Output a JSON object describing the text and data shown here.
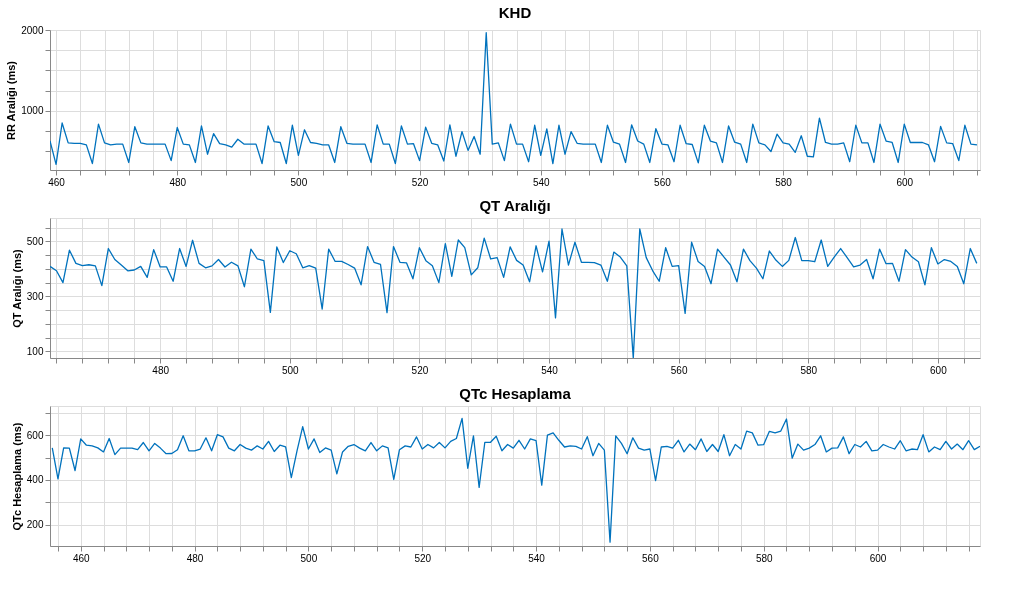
{
  "chart_data": [
    {
      "type": "line",
      "title": "KHD",
      "ylabel": "RR Aralığı (ms)",
      "grid": true,
      "marker": "none",
      "line_style": "solid",
      "xlim": [
        459,
        612.5
      ],
      "ylim": [
        270,
        2000
      ],
      "xticks": [
        {
          "value": 464,
          "label": null
        },
        {
          "value": 468,
          "label": null
        },
        {
          "value": 472,
          "label": null
        },
        {
          "value": 476,
          "label": null
        },
        460,
        480,
        500,
        520,
        540,
        560,
        580,
        600,
        {
          "value": 484,
          "label": null
        },
        {
          "value": 488,
          "label": null
        },
        {
          "value": 492,
          "label": null
        },
        {
          "value": 496,
          "label": null
        },
        {
          "value": 504,
          "label": null
        },
        {
          "value": 508,
          "label": null
        },
        {
          "value": 512,
          "label": null
        },
        {
          "value": 516,
          "label": null
        },
        {
          "value": 524,
          "label": null
        },
        {
          "value": 528,
          "label": null
        },
        {
          "value": 532,
          "label": null
        },
        {
          "value": 536,
          "label": null
        },
        {
          "value": 544,
          "label": null
        },
        {
          "value": 548,
          "label": null
        },
        {
          "value": 552,
          "label": null
        },
        {
          "value": 556,
          "label": null
        },
        {
          "value": 564,
          "label": null
        },
        {
          "value": 568,
          "label": null
        },
        {
          "value": 572,
          "label": null
        },
        {
          "value": 576,
          "label": null
        },
        {
          "value": 584,
          "label": null
        },
        {
          "value": 588,
          "label": null
        },
        {
          "value": 592,
          "label": null
        },
        {
          "value": 596,
          "label": null
        },
        {
          "value": 604,
          "label": null
        },
        {
          "value": 608,
          "label": null
        },
        {
          "value": 612,
          "label": null
        }
      ],
      "yticks": [
        {
          "value": 500,
          "label": null
        },
        {
          "value": 750,
          "label": null
        },
        1000,
        {
          "value": 1250,
          "label": null
        },
        {
          "value": 1500,
          "label": null
        },
        {
          "value": 1750,
          "label": null
        },
        2000
      ],
      "x": [
        459,
        460,
        461,
        462,
        463,
        464,
        465,
        466,
        467,
        468,
        469,
        470,
        471,
        472,
        473,
        474,
        475,
        476,
        477,
        478,
        479,
        480,
        481,
        482,
        483,
        484,
        485,
        486,
        487,
        488,
        489,
        490,
        491,
        492,
        493,
        494,
        495,
        496,
        497,
        498,
        499,
        500,
        501,
        502,
        503,
        504,
        505,
        506,
        507,
        508,
        509,
        510,
        511,
        512,
        513,
        514,
        515,
        516,
        517,
        518,
        519,
        520,
        521,
        522,
        523,
        524,
        525,
        526,
        527,
        528,
        529,
        530,
        531,
        532,
        533,
        534,
        535,
        536,
        537,
        538,
        539,
        540,
        541,
        542,
        543,
        544,
        545,
        546,
        547,
        548,
        549,
        550,
        551,
        552,
        553,
        554,
        555,
        556,
        557,
        558,
        559,
        560,
        561,
        562,
        563,
        564,
        565,
        566,
        567,
        568,
        569,
        570,
        571,
        572,
        573,
        574,
        575,
        576,
        577,
        578,
        579,
        580,
        581,
        582,
        583,
        584,
        585,
        586,
        587,
        588,
        589,
        590,
        591,
        592,
        593,
        594,
        595,
        596,
        597,
        598,
        599,
        600,
        601,
        602,
        603,
        604,
        605,
        606,
        607,
        608,
        609,
        610,
        611,
        612
      ],
      "series": [
        {
          "color": "#0072bd",
          "values": [
            628,
            340,
            851,
            605,
            600,
            600,
            580,
            350,
            837,
            605,
            580,
            590,
            590,
            363,
            805,
            605,
            590,
            590,
            590,
            590,
            386,
            795,
            590,
            580,
            363,
            814,
            465,
            720,
            595,
            580,
            553,
            650,
            590,
            590,
            590,
            350,
            814,
            620,
            610,
            350,
            823,
            450,
            767,
            610,
            600,
            580,
            580,
            363,
            805,
            600,
            590,
            590,
            590,
            363,
            828,
            590,
            590,
            350,
            814,
            590,
            595,
            386,
            800,
            600,
            580,
            381,
            828,
            440,
            744,
            512,
            684,
            465,
            1967,
            590,
            605,
            386,
            837,
            590,
            590,
            372,
            823,
            450,
            777,
            350,
            823,
            465,
            744,
            600,
            590,
            590,
            590,
            363,
            823,
            614,
            590,
            363,
            828,
            628,
            590,
            363,
            781,
            590,
            580,
            372,
            823,
            595,
            585,
            358,
            823,
            628,
            605,
            363,
            814,
            614,
            590,
            363,
            837,
            605,
            580,
            498,
            712,
            605,
            590,
            488,
            693,
            440,
            433,
            912,
            610,
            590,
            590,
            605,
            372,
            823,
            605,
            605,
            363,
            837,
            628,
            610,
            363,
            837,
            610,
            610,
            610,
            580,
            372,
            809,
            605,
            595,
            386,
            823,
            590,
            580
          ]
        }
      ]
    },
    {
      "type": "line",
      "title": "QT Aralığı",
      "ylabel": "QT Aralığı (ms)",
      "grid": true,
      "marker": "none",
      "line_style": "solid",
      "xlim": [
        463,
        606.5
      ],
      "ylim": [
        76,
        585
      ],
      "xticks": [
        {
          "value": 464,
          "label": null
        },
        {
          "value": 468,
          "label": null
        },
        {
          "value": 472,
          "label": null
        },
        {
          "value": 476,
          "label": null
        },
        480,
        500,
        520,
        540,
        560,
        580,
        600,
        {
          "value": 484,
          "label": null
        },
        {
          "value": 488,
          "label": null
        },
        {
          "value": 492,
          "label": null
        },
        {
          "value": 496,
          "label": null
        },
        {
          "value": 504,
          "label": null
        },
        {
          "value": 508,
          "label": null
        },
        {
          "value": 512,
          "label": null
        },
        {
          "value": 516,
          "label": null
        },
        {
          "value": 524,
          "label": null
        },
        {
          "value": 528,
          "label": null
        },
        {
          "value": 532,
          "label": null
        },
        {
          "value": 536,
          "label": null
        },
        {
          "value": 544,
          "label": null
        },
        {
          "value": 548,
          "label": null
        },
        {
          "value": 552,
          "label": null
        },
        {
          "value": 556,
          "label": null
        },
        {
          "value": 564,
          "label": null
        },
        {
          "value": 568,
          "label": null
        },
        {
          "value": 572,
          "label": null
        },
        {
          "value": 576,
          "label": null
        },
        {
          "value": 584,
          "label": null
        },
        {
          "value": 588,
          "label": null
        },
        {
          "value": 592,
          "label": null
        },
        {
          "value": 596,
          "label": null
        },
        {
          "value": 604,
          "label": null
        }
      ],
      "yticks": [
        100,
        {
          "value": 150,
          "label": null
        },
        {
          "value": 200,
          "label": null
        },
        {
          "value": 250,
          "label": null
        },
        300,
        {
          "value": 350,
          "label": null
        },
        {
          "value": 400,
          "label": null
        },
        {
          "value": 450,
          "label": null
        },
        500,
        {
          "value": 550,
          "label": null
        }
      ],
      "x": [
        463,
        464,
        465,
        466,
        467,
        468,
        469,
        470,
        471,
        472,
        473,
        474,
        475,
        476,
        477,
        478,
        479,
        480,
        481,
        482,
        483,
        484,
        485,
        486,
        487,
        488,
        489,
        490,
        491,
        492,
        493,
        494,
        495,
        496,
        497,
        498,
        499,
        500,
        501,
        502,
        503,
        504,
        505,
        506,
        507,
        508,
        509,
        510,
        511,
        512,
        513,
        514,
        515,
        516,
        517,
        518,
        519,
        520,
        521,
        522,
        523,
        524,
        525,
        526,
        527,
        528,
        529,
        530,
        531,
        532,
        533,
        534,
        535,
        536,
        537,
        538,
        539,
        540,
        541,
        542,
        543,
        544,
        545,
        546,
        547,
        548,
        549,
        550,
        551,
        552,
        553,
        554,
        555,
        556,
        557,
        558,
        559,
        560,
        561,
        562,
        563,
        564,
        565,
        566,
        567,
        568,
        569,
        570,
        571,
        572,
        573,
        574,
        575,
        576,
        577,
        578,
        579,
        580,
        581,
        582,
        583,
        584,
        585,
        586,
        587,
        588,
        589,
        590,
        591,
        592,
        593,
        594,
        595,
        596,
        597,
        598,
        599,
        600,
        601,
        602,
        603,
        604,
        605,
        606
      ],
      "series": [
        {
          "color": "#0072bd",
          "values": [
            409,
            393,
            350,
            468,
            420,
            412,
            415,
            411,
            339,
            474,
            434,
            414,
            393,
            396,
            409,
            369,
            470,
            407,
            407,
            355,
            474,
            409,
            504,
            420,
            404,
            411,
            434,
            407,
            424,
            411,
            335,
            472,
            436,
            430,
            242,
            480,
            423,
            466,
            455,
            404,
            412,
            403,
            254,
            472,
            427,
            427,
            416,
            403,
            342,
            481,
            424,
            416,
            241,
            481,
            424,
            422,
            364,
            477,
            430,
            411,
            350,
            492,
            373,
            505,
            477,
            378,
            404,
            512,
            436,
            441,
            369,
            480,
            431,
            414,
            353,
            484,
            389,
            501,
            222,
            545,
            414,
            497,
            424,
            424,
            423,
            414,
            355,
            461,
            443,
            411,
            76,
            545,
            441,
            393,
            355,
            477,
            409,
            412,
            238,
            497,
            427,
            409,
            346,
            472,
            443,
            414,
            353,
            472,
            430,
            403,
            364,
            465,
            432,
            409,
            431,
            514,
            430,
            430,
            426,
            505,
            409,
            443,
            474,
            441,
            407,
            414,
            434,
            364,
            472,
            419,
            420,
            355,
            470,
            443,
            426,
            342,
            477,
            418,
            434,
            427,
            409,
            346,
            474,
            420
          ]
        }
      ]
    },
    {
      "type": "line",
      "title": "QTc Hesaplama",
      "ylabel": "QTc Hesaplama (ms)",
      "grid": true,
      "marker": "none",
      "line_style": "solid",
      "xlim": [
        454.6,
        618
      ],
      "ylim": [
        105,
        730
      ],
      "xticks": [
        {
          "value": 456,
          "label": null
        },
        {
          "value": 464,
          "label": null
        },
        {
          "value": 468,
          "label": null
        },
        {
          "value": 472,
          "label": null
        },
        {
          "value": 476,
          "label": null
        },
        460,
        480,
        500,
        520,
        540,
        560,
        580,
        600,
        {
          "value": 484,
          "label": null
        },
        {
          "value": 488,
          "label": null
        },
        {
          "value": 492,
          "label": null
        },
        {
          "value": 496,
          "label": null
        },
        {
          "value": 504,
          "label": null
        },
        {
          "value": 508,
          "label": null
        },
        {
          "value": 512,
          "label": null
        },
        {
          "value": 516,
          "label": null
        },
        {
          "value": 524,
          "label": null
        },
        {
          "value": 528,
          "label": null
        },
        {
          "value": 532,
          "label": null
        },
        {
          "value": 536,
          "label": null
        },
        {
          "value": 544,
          "label": null
        },
        {
          "value": 548,
          "label": null
        },
        {
          "value": 552,
          "label": null
        },
        {
          "value": 556,
          "label": null
        },
        {
          "value": 564,
          "label": null
        },
        {
          "value": 568,
          "label": null
        },
        {
          "value": 572,
          "label": null
        },
        {
          "value": 576,
          "label": null
        },
        {
          "value": 584,
          "label": null
        },
        {
          "value": 588,
          "label": null
        },
        {
          "value": 592,
          "label": null
        },
        {
          "value": 596,
          "label": null
        },
        {
          "value": 604,
          "label": null
        },
        {
          "value": 608,
          "label": null
        },
        {
          "value": 612,
          "label": null
        },
        {
          "value": 616,
          "label": null
        }
      ],
      "yticks": [
        200,
        {
          "value": 300,
          "label": null
        },
        400,
        {
          "value": 500,
          "label": null
        },
        600,
        {
          "value": 700,
          "label": null
        }
      ],
      "x": [
        455,
        456,
        457,
        458,
        459,
        460,
        461,
        462,
        463,
        464,
        465,
        466,
        467,
        468,
        469,
        470,
        471,
        472,
        473,
        474,
        475,
        476,
        477,
        478,
        479,
        480,
        481,
        482,
        483,
        484,
        485,
        486,
        487,
        488,
        489,
        490,
        491,
        492,
        493,
        494,
        495,
        496,
        497,
        498,
        499,
        500,
        501,
        502,
        503,
        504,
        505,
        506,
        507,
        508,
        509,
        510,
        511,
        512,
        513,
        514,
        515,
        516,
        517,
        518,
        519,
        520,
        521,
        522,
        523,
        524,
        525,
        526,
        527,
        528,
        529,
        530,
        531,
        532,
        533,
        534,
        535,
        536,
        537,
        538,
        539,
        540,
        541,
        542,
        543,
        544,
        545,
        546,
        547,
        548,
        549,
        550,
        551,
        552,
        553,
        554,
        555,
        556,
        557,
        558,
        559,
        560,
        561,
        562,
        563,
        564,
        565,
        566,
        567,
        568,
        569,
        570,
        571,
        572,
        573,
        574,
        575,
        576,
        577,
        578,
        579,
        580,
        581,
        582,
        583,
        584,
        585,
        586,
        587,
        588,
        589,
        590,
        591,
        592,
        593,
        594,
        595,
        596,
        597,
        598,
        599,
        600,
        601,
        602,
        603,
        604,
        605,
        606,
        607,
        608,
        609,
        610,
        611,
        612,
        613,
        614,
        615,
        616,
        617,
        618
      ],
      "series": [
        {
          "color": "#0072bd",
          "values": [
            543,
            405,
            543,
            542,
            442,
            583,
            555,
            552,
            543,
            525,
            585,
            513,
            542,
            542,
            542,
            535,
            567,
            530,
            563,
            542,
            517,
            518,
            535,
            597,
            530,
            530,
            538,
            588,
            530,
            602,
            592,
            542,
            530,
            558,
            542,
            533,
            552,
            538,
            572,
            527,
            555,
            547,
            410,
            530,
            638,
            538,
            583,
            522,
            543,
            533,
            427,
            525,
            550,
            558,
            542,
            530,
            567,
            530,
            552,
            543,
            402,
            535,
            552,
            547,
            592,
            538,
            558,
            543,
            567,
            543,
            572,
            585,
            675,
            452,
            597,
            367,
            568,
            568,
            595,
            530,
            558,
            542,
            577,
            538,
            583,
            575,
            377,
            600,
            610,
            577,
            547,
            552,
            550,
            538,
            593,
            508,
            563,
            533,
            122,
            597,
            563,
            517,
            588,
            542,
            533,
            538,
            397,
            547,
            550,
            542,
            577,
            525,
            560,
            535,
            583,
            527,
            558,
            527,
            602,
            508,
            558,
            538,
            618,
            610,
            555,
            558,
            617,
            610,
            618,
            672,
            497,
            560,
            533,
            542,
            558,
            597,
            525,
            542,
            543,
            592,
            517,
            558,
            547,
            572,
            530,
            533,
            558,
            547,
            538,
            575,
            530,
            538,
            535,
            602,
            525,
            547,
            535,
            572,
            538,
            560,
            535,
            575,
            535,
            550
          ]
        }
      ]
    }
  ]
}
